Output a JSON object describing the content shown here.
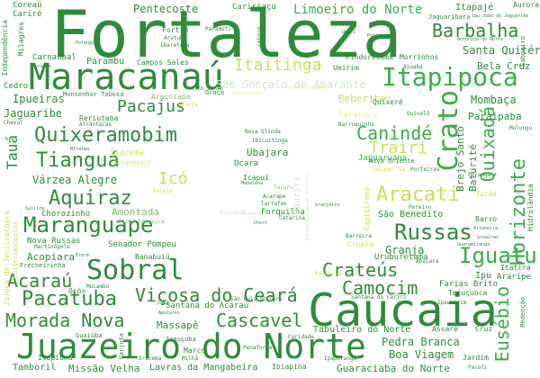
{
  "palette": {
    "dark_green": "#2e8b3a",
    "mid_green": "#3cab4a",
    "light_green": "#7cc46a",
    "yellow_green": "#c8e05a",
    "pale_yellow": "#e8ec9a",
    "pale_green": "#cfe8c8",
    "background": "#ffffff"
  },
  "words": [
    "Fortaleza",
    "Caucaia",
    "Juazeiro do Norte",
    "Maracanaú",
    "Sobral",
    "Itapipoca",
    "Maranguape",
    "Crato",
    "Iguatu",
    "Quixadá",
    "Pacatuba",
    "Quixeramobim",
    "Aquiraz",
    "Canindé",
    "Russas",
    "Tianguá",
    "Aracati",
    "Cascavel",
    "Crateús",
    "Camocim",
    "Morada Nova",
    "Horizonte",
    "Eusébio",
    "Acaraú",
    "Viçosa do Ceará",
    "Itaitinga",
    "Pacajus",
    "Barbalha",
    "Icó",
    "Trairi",
    "Limoeiro do Norte",
    "Tauá",
    "Mombaça",
    "Santa Quitéria",
    "Bela Cruz",
    "Pentecoste",
    "Beberibe",
    "Jaguaribe",
    "Ipueiras",
    "Paraipaba",
    "Várzea Alegre",
    "Ubajara",
    "Granja",
    "Boa Viagem",
    "Pedra Branca",
    "Massapê",
    "Brejo Santo",
    "Baturité",
    "São Gonçalo do Amarante",
    "Amontada",
    "Acopiara",
    "Missão Velha",
    "Lavras da Mangabeira",
    "Guaraciaba do Norte",
    "Tamboril",
    "Coreaú",
    "Cariré",
    "Cariríaçu",
    "Itapajé",
    "Aurora",
    "Jaguaribara",
    "São João do Jaguaribe",
    "Antonina do Norte",
    "Saboeiro",
    "Independência",
    "Milagres",
    "Fortim",
    "Aratuba",
    "Ibaretama",
    "Potengi",
    "Paramoti",
    "Caturiá",
    "Umari",
    "Umirim",
    "Pindoretama",
    "Morrinhos",
    "Aiuaba",
    "Carnaubal",
    "Parambu",
    "Campos Sales",
    "Moraújo",
    "Cedro",
    "Monsenhor Tabosa",
    "Aracoiaba",
    "Graça",
    "Reriutaba",
    "Alcântaras",
    "Uruoca",
    "Miraíma",
    "Solonópole",
    "Itarema",
    "Ocara",
    "Nova Olinda",
    "Ibicuitinga",
    "Quixeré",
    "Quixelô",
    "Mulungu",
    "Paracuru",
    "Barroquinha",
    "Jaguaruana",
    "Senador Sá",
    "Poranga",
    "Penaforte",
    "Caridade",
    "Nova Oriente",
    "Porteiras",
    "Catarina",
    "Guaiúba",
    "Varjota",
    "Irauçuba",
    "Marco",
    "Hidrolândia",
    "Jucás",
    "Cruz",
    "São Benedito",
    "Barro",
    "Altaneira",
    "Groaíras",
    "Guaramiranga",
    "Itatira",
    "Araripe",
    "Ipu",
    "Farias Brito",
    "Tejuçuoca",
    "Redenção",
    "Assaré",
    "Pacoti",
    "Jardim",
    "Uruburetama",
    "Abaiara",
    "Santana do Cariri",
    "Palmácia",
    "Croata",
    "Barreira",
    "Tabuleiro do Norte",
    "Santana do Acaraú",
    "São Luís do Curu",
    "Apuiarés",
    "Jati",
    "Chaval",
    "Nova Russas",
    "Chorozinho",
    "Senador Pompeu",
    "Banabuiú",
    "Martinópole",
    "Ererê",
    "Frecheirinha",
    "Mucambo",
    "Orós",
    "Itapiúna",
    "Iracema",
    "Ipaporanga",
    "Ibiapina",
    "Milhã",
    "Jijoca de Jericoacoara",
    "Quiterianópolis",
    "Salitre",
    "Pires Ferreira",
    "Tururu",
    "Icapuí",
    "Acarape",
    "Arneiroz",
    "Forquilha",
    "Choró",
    "Mauriti",
    "Capistrano",
    "Madalena",
    "Tarrafas",
    "Granjeiro",
    "General Sampaio",
    "Pereiro",
    "Deputado Irapuan Pinheiro",
    "Ararendá",
    "Potiretama",
    "Alto Santo",
    "Jaguaretama",
    "Baixio",
    "Ipaumirim"
  ]
}
